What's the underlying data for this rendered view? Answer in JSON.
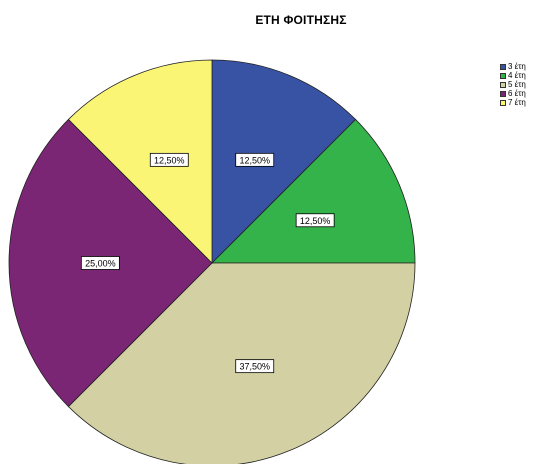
{
  "chart_data": {
    "type": "pie",
    "title": "ΕΤΗ ΦΟΙΤΗΣΗΣ",
    "categories": [
      "3 έτη",
      "4 έτη",
      "5 έτη",
      "6 έτη",
      "7 έτη"
    ],
    "values": [
      12.5,
      12.5,
      37.5,
      25.0,
      12.5
    ],
    "data_labels": [
      "12,50%",
      "12,50%",
      "37,50%",
      "25,00%",
      "12,50%"
    ],
    "colors": [
      "#3953a4",
      "#34b34a",
      "#d3d1a3",
      "#7b2575",
      "#fbf576"
    ],
    "legend_position": "top-right"
  }
}
